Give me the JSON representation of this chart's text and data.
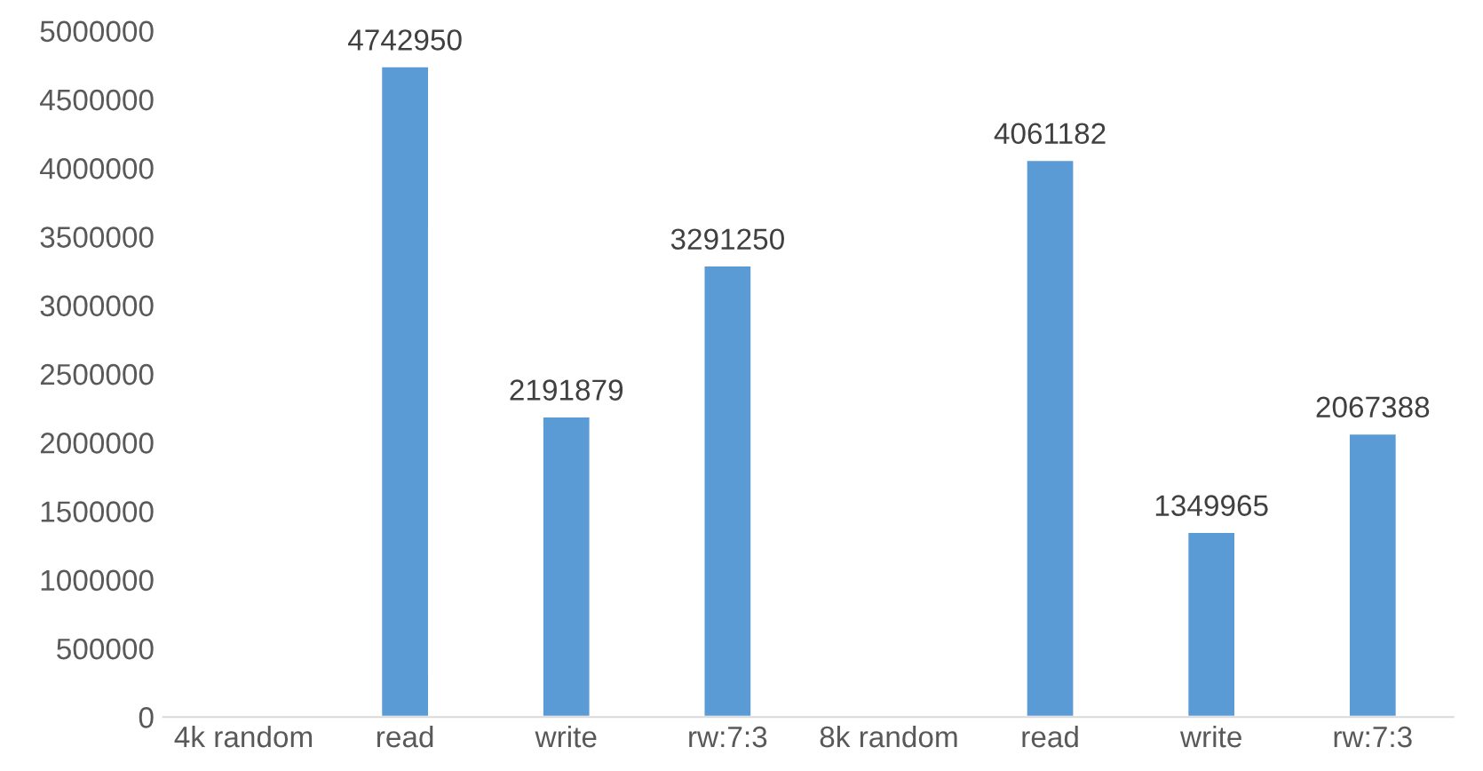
{
  "chart_data": {
    "type": "bar",
    "categories": [
      "4k random",
      "read",
      "write",
      "rw:7:3",
      "8k random",
      "read",
      "write",
      "rw:7:3"
    ],
    "values": [
      null,
      4742950,
      2191879,
      3291250,
      null,
      4061182,
      1349965,
      2067388
    ],
    "color": "#5b9bd5",
    "ylim": [
      0,
      5000000
    ],
    "yticks": [
      0,
      500000,
      1000000,
      1500000,
      2000000,
      2500000,
      3000000,
      3500000,
      4000000,
      4500000,
      5000000
    ],
    "data_labels": true,
    "grid": false,
    "legend": false
  }
}
